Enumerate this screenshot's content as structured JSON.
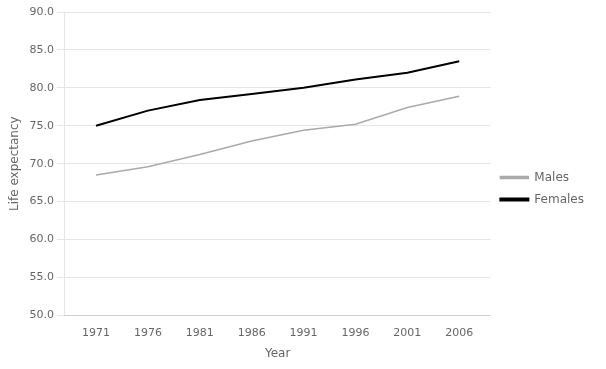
{
  "chart_data": {
    "type": "line",
    "x": [
      1971,
      1976,
      1981,
      1986,
      1991,
      1996,
      2001,
      2006
    ],
    "series": [
      {
        "name": "Males",
        "color": "#aaaaaa",
        "values": [
          68.5,
          69.6,
          71.2,
          73.0,
          74.4,
          75.2,
          77.4,
          78.9
        ]
      },
      {
        "name": "Females",
        "color": "#000000",
        "values": [
          75.0,
          77.0,
          78.4,
          79.2,
          80.0,
          81.1,
          82.0,
          83.5
        ]
      }
    ],
    "x_label": "Year",
    "y_label": "Life expectancy",
    "xlim": [
      1968,
      2009
    ],
    "xticks": [
      1971,
      1976,
      1981,
      1986,
      1991,
      1996,
      2001,
      2006
    ],
    "ylim": [
      50,
      90
    ],
    "yticks": [
      {
        "value": 50,
        "label": "50.0"
      },
      {
        "value": 55,
        "label": "55.0"
      },
      {
        "value": 60,
        "label": "60.0"
      },
      {
        "value": 65,
        "label": "65.0"
      },
      {
        "value": 70,
        "label": "70.0"
      },
      {
        "value": 75,
        "label": "75.0"
      },
      {
        "value": 80,
        "label": "80.0"
      },
      {
        "value": 85,
        "label": "85.0"
      },
      {
        "value": 90,
        "label": "90.0"
      }
    ],
    "grid": "y",
    "legend": "right"
  }
}
